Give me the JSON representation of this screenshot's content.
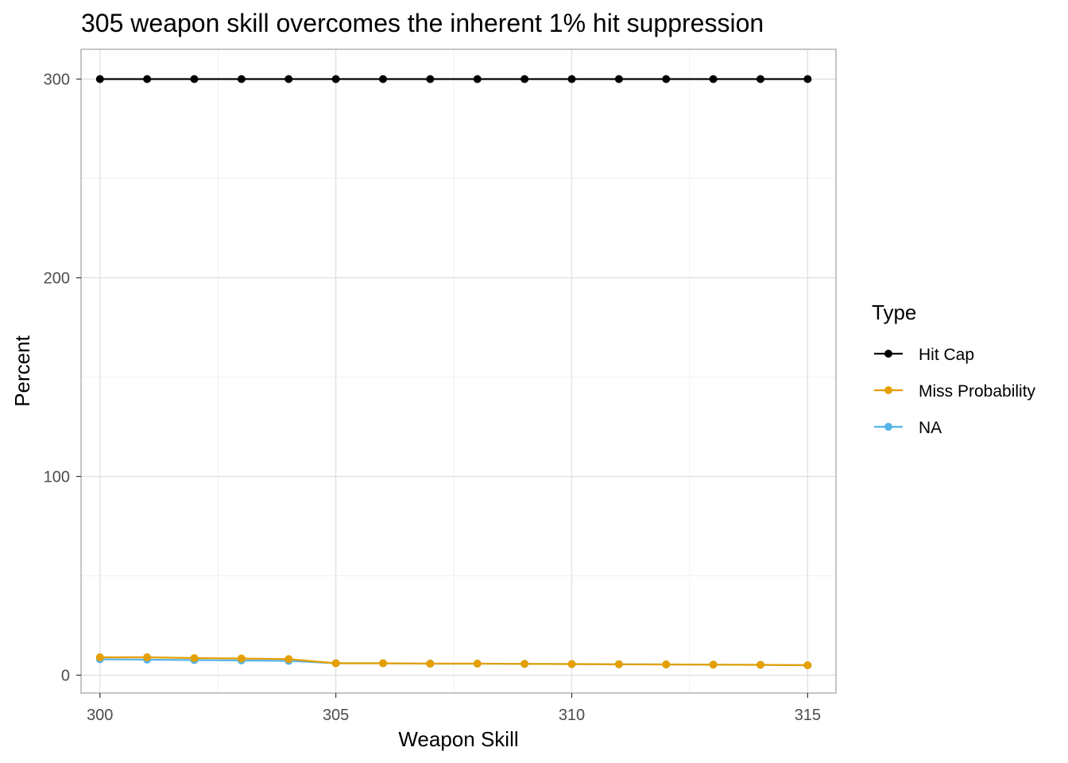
{
  "chart_data": {
    "type": "line",
    "title": "305 weapon skill overcomes the inherent 1% hit suppression",
    "xlabel": "Weapon Skill",
    "ylabel": "Percent",
    "xlim": [
      299.6,
      315.6
    ],
    "ylim": [
      -9,
      315
    ],
    "x_ticks": [
      300,
      305,
      310,
      315
    ],
    "y_ticks": [
      0,
      100,
      200,
      300
    ],
    "grid": true,
    "legend": {
      "title": "Type",
      "position": "right"
    },
    "x": [
      300,
      301,
      302,
      303,
      304,
      305,
      306,
      307,
      308,
      309,
      310,
      311,
      312,
      313,
      314,
      315
    ],
    "series": [
      {
        "name": "Hit Cap",
        "color": "#000000",
        "values": [
          300,
          300,
          300,
          300,
          300,
          300,
          300,
          300,
          300,
          300,
          300,
          300,
          300,
          300,
          300,
          300
        ]
      },
      {
        "name": "Miss Probability",
        "color": "#E69F00",
        "values": [
          9,
          9,
          8.6,
          8.4,
          8.1,
          6,
          6,
          5.8,
          5.8,
          5.7,
          5.6,
          5.5,
          5.4,
          5.3,
          5.2,
          5
        ]
      },
      {
        "name": "NA",
        "color": "#56B4E9",
        "values": [
          8,
          7.8,
          7.6,
          7.4,
          7.2,
          6,
          6,
          5.8,
          5.8,
          5.7,
          5.6,
          5.5,
          5.4,
          5.3,
          5.2,
          5
        ]
      }
    ]
  }
}
